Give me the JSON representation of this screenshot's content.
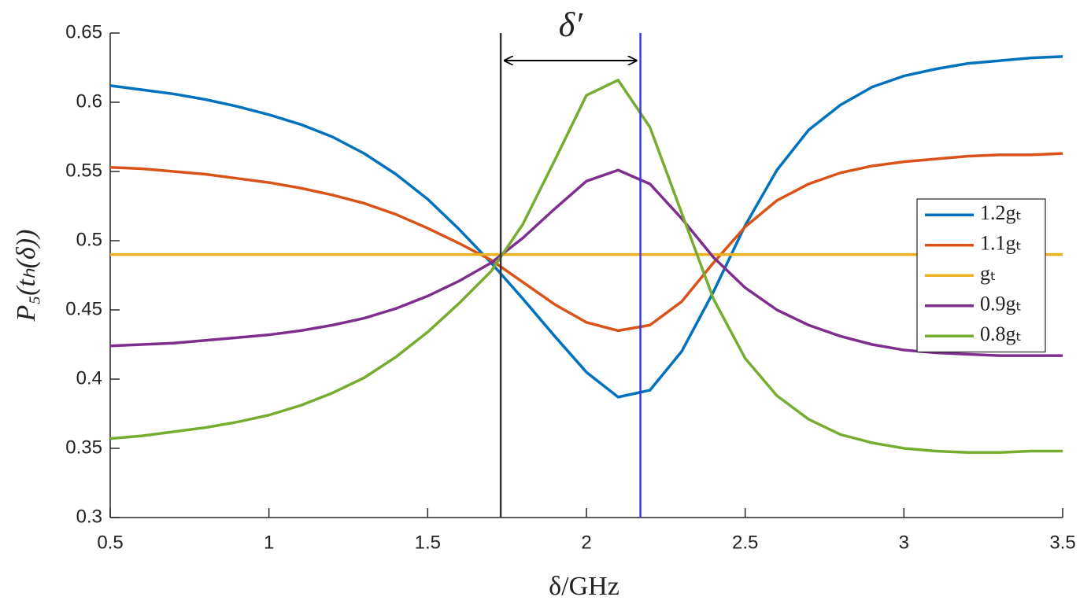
{
  "chart_data": {
    "type": "line",
    "xlabel": "δ/GHz",
    "ylabel": "P₅(tₕ(δ))",
    "annotation": "δ′",
    "x": [
      0.5,
      0.6,
      0.7,
      0.8,
      0.9,
      1.0,
      1.1,
      1.2,
      1.3,
      1.4,
      1.5,
      1.6,
      1.7,
      1.8,
      1.9,
      2.0,
      2.1,
      2.2,
      2.3,
      2.4,
      2.5,
      2.6,
      2.7,
      2.8,
      2.9,
      3.0,
      3.1,
      3.2,
      3.3,
      3.4,
      3.5
    ],
    "series": [
      {
        "name": "1.2gₜ",
        "color": "#0072bd",
        "values": [
          0.612,
          0.609,
          0.606,
          0.602,
          0.597,
          0.591,
          0.584,
          0.575,
          0.563,
          0.548,
          0.53,
          0.508,
          0.484,
          0.458,
          0.431,
          0.405,
          0.387,
          0.392,
          0.42,
          0.463,
          0.511,
          0.551,
          0.58,
          0.598,
          0.611,
          0.619,
          0.624,
          0.628,
          0.63,
          0.632,
          0.633
        ]
      },
      {
        "name": "1.1gₜ",
        "color": "#d95319",
        "values": [
          0.553,
          0.552,
          0.55,
          0.548,
          0.545,
          0.542,
          0.538,
          0.533,
          0.527,
          0.519,
          0.509,
          0.498,
          0.486,
          0.47,
          0.454,
          0.441,
          0.435,
          0.439,
          0.456,
          0.484,
          0.51,
          0.529,
          0.541,
          0.549,
          0.554,
          0.557,
          0.559,
          0.561,
          0.562,
          0.562,
          0.563
        ]
      },
      {
        "name": "gₜ",
        "color": "#edb120",
        "values": [
          0.49,
          0.49,
          0.49,
          0.49,
          0.49,
          0.49,
          0.49,
          0.49,
          0.49,
          0.49,
          0.49,
          0.49,
          0.49,
          0.49,
          0.49,
          0.49,
          0.49,
          0.49,
          0.49,
          0.49,
          0.49,
          0.49,
          0.49,
          0.49,
          0.49,
          0.49,
          0.49,
          0.49,
          0.49,
          0.49,
          0.49
        ]
      },
      {
        "name": "0.9gₜ",
        "color": "#7e2f8e",
        "values": [
          0.424,
          0.425,
          0.426,
          0.428,
          0.43,
          0.432,
          0.435,
          0.439,
          0.444,
          0.451,
          0.46,
          0.471,
          0.484,
          0.502,
          0.523,
          0.543,
          0.551,
          0.541,
          0.516,
          0.488,
          0.466,
          0.45,
          0.439,
          0.431,
          0.425,
          0.421,
          0.419,
          0.418,
          0.417,
          0.417,
          0.417
        ]
      },
      {
        "name": "0.8gₜ",
        "color": "#77ac30",
        "values": [
          0.357,
          0.359,
          0.362,
          0.365,
          0.369,
          0.374,
          0.381,
          0.39,
          0.401,
          0.416,
          0.434,
          0.455,
          0.478,
          0.512,
          0.558,
          0.605,
          0.616,
          0.582,
          0.52,
          0.458,
          0.415,
          0.388,
          0.371,
          0.36,
          0.354,
          0.35,
          0.348,
          0.347,
          0.347,
          0.348,
          0.348
        ]
      }
    ],
    "vlines": [
      {
        "x": 1.73,
        "color": "#333333"
      },
      {
        "x": 2.17,
        "color": "#3a3ae0"
      }
    ],
    "xlim": [
      0.5,
      3.5
    ],
    "ylim": [
      0.3,
      0.65
    ],
    "xticks": [
      0.5,
      1,
      1.5,
      2,
      2.5,
      3,
      3.5
    ],
    "yticks": [
      0.3,
      0.35,
      0.4,
      0.45,
      0.5,
      0.55,
      0.6,
      0.65
    ],
    "legend": "right"
  }
}
